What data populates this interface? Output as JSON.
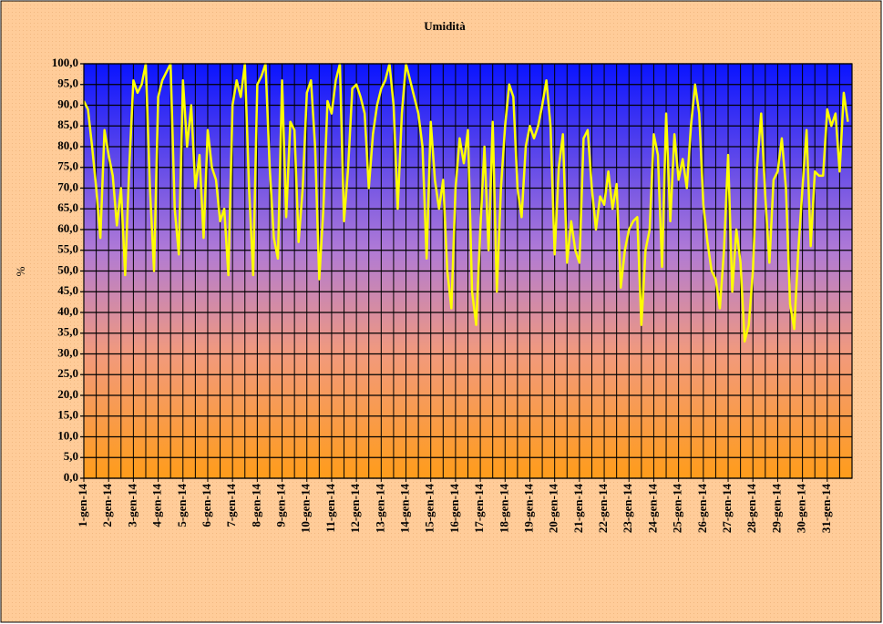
{
  "chart_data": {
    "type": "line",
    "title": "Umidità",
    "ylabel": "%",
    "categories": [
      "1-gen-14",
      null,
      null,
      null,
      null,
      null,
      "2-gen-14",
      null,
      null,
      null,
      null,
      null,
      "3-gen-14",
      null,
      null,
      null,
      null,
      null,
      "4-gen-14",
      null,
      null,
      null,
      null,
      null,
      "5-gen-14",
      null,
      null,
      null,
      null,
      null,
      "6-gen-14",
      null,
      null,
      null,
      null,
      null,
      "7-gen-14",
      null,
      null,
      null,
      null,
      null,
      "8-gen-14",
      null,
      null,
      null,
      null,
      null,
      "9-gen-14",
      null,
      null,
      null,
      null,
      null,
      "10-gen-14",
      null,
      null,
      null,
      null,
      null,
      "11-gen-14",
      null,
      null,
      null,
      null,
      null,
      "12-gen-14",
      null,
      null,
      null,
      null,
      null,
      "13-gen-14",
      null,
      null,
      null,
      null,
      null,
      "14-gen-14",
      null,
      null,
      null,
      null,
      null,
      "15-gen-14",
      null,
      null,
      null,
      null,
      null,
      "16-gen-14",
      null,
      null,
      null,
      null,
      null,
      "17-gen-14",
      null,
      null,
      null,
      null,
      null,
      "18-gen-14",
      null,
      null,
      null,
      null,
      null,
      "19-gen-14",
      null,
      null,
      null,
      null,
      null,
      "20-gen-14",
      null,
      null,
      null,
      null,
      null,
      "21-gen-14",
      null,
      null,
      null,
      null,
      null,
      "22-gen-14",
      null,
      null,
      null,
      null,
      null,
      "23-gen-14",
      null,
      null,
      null,
      null,
      null,
      "24-gen-14",
      null,
      null,
      null,
      null,
      null,
      "25-gen-14",
      null,
      null,
      null,
      null,
      null,
      "26-gen-14",
      null,
      null,
      null,
      null,
      null,
      "27-gen-14",
      null,
      null,
      null,
      null,
      null,
      "28-gen-14",
      null,
      null,
      null,
      null,
      null,
      "29-gen-14",
      null,
      null,
      null,
      null,
      null,
      "30-gen-14",
      null,
      null,
      null,
      null,
      null,
      "31-gen-14",
      null,
      null,
      null,
      null,
      null
    ],
    "series": [
      {
        "name": "Umidità",
        "color": "#ffff00",
        "values": [
          91,
          89,
          80,
          70,
          58,
          84,
          78,
          73,
          61,
          70,
          49,
          75,
          96,
          93,
          95,
          100,
          70,
          50,
          92,
          96,
          98,
          100,
          65,
          54,
          96,
          80,
          90,
          70,
          78,
          58,
          84,
          75,
          72,
          62,
          65,
          49,
          90,
          96,
          92,
          100,
          70,
          49,
          95,
          97,
          100,
          75,
          58,
          53,
          96,
          63,
          86,
          84,
          57,
          70,
          93,
          96,
          80,
          48,
          65,
          91,
          88,
          96,
          100,
          62,
          75,
          94,
          95,
          92,
          88,
          70,
          83,
          90,
          94,
          96,
          100,
          90,
          65,
          88,
          100,
          96,
          92,
          88,
          80,
          53,
          86,
          72,
          65,
          72,
          50,
          41,
          70,
          82,
          76,
          84,
          45,
          37,
          60,
          80,
          55,
          86,
          45,
          70,
          85,
          95,
          92,
          70,
          63,
          80,
          85,
          82,
          85,
          90,
          96,
          85,
          54,
          75,
          83,
          52,
          62,
          55,
          52,
          82,
          84,
          70,
          60,
          68,
          66,
          74,
          65,
          71,
          46,
          55,
          60,
          62,
          63,
          37,
          55,
          60,
          83,
          78,
          51,
          88,
          62,
          83,
          72,
          77,
          70,
          85,
          95,
          88,
          66,
          57,
          50,
          48,
          41,
          55,
          78,
          45,
          60,
          52,
          33,
          37,
          50,
          75,
          88,
          68,
          52,
          72,
          74,
          82,
          70,
          42,
          36,
          55,
          70,
          84,
          56,
          74,
          73,
          73,
          89,
          85,
          88,
          74,
          93,
          86
        ]
      }
    ],
    "ylim": [
      0,
      100
    ],
    "yticks": [
      {
        "value": 0,
        "label": "0,0"
      },
      {
        "value": 5,
        "label": "5,0"
      },
      {
        "value": 10,
        "label": "10,0"
      },
      {
        "value": 15,
        "label": "15,0"
      },
      {
        "value": 20,
        "label": "20,0"
      },
      {
        "value": 25,
        "label": "25,0"
      },
      {
        "value": 30,
        "label": "30,0"
      },
      {
        "value": 35,
        "label": "35,0"
      },
      {
        "value": 40,
        "label": "40,0"
      },
      {
        "value": 45,
        "label": "45,0"
      },
      {
        "value": 50,
        "label": "50,0"
      },
      {
        "value": 55,
        "label": "55,0"
      },
      {
        "value": 60,
        "label": "60,0"
      },
      {
        "value": 65,
        "label": "65,0"
      },
      {
        "value": 70,
        "label": "70,0"
      },
      {
        "value": 75,
        "label": "75,0"
      },
      {
        "value": 80,
        "label": "80,0"
      },
      {
        "value": 85,
        "label": "85,0"
      },
      {
        "value": 90,
        "label": "90,0"
      },
      {
        "value": 95,
        "label": "95,0"
      },
      {
        "value": 100,
        "label": "100,0"
      }
    ],
    "grid": true
  }
}
